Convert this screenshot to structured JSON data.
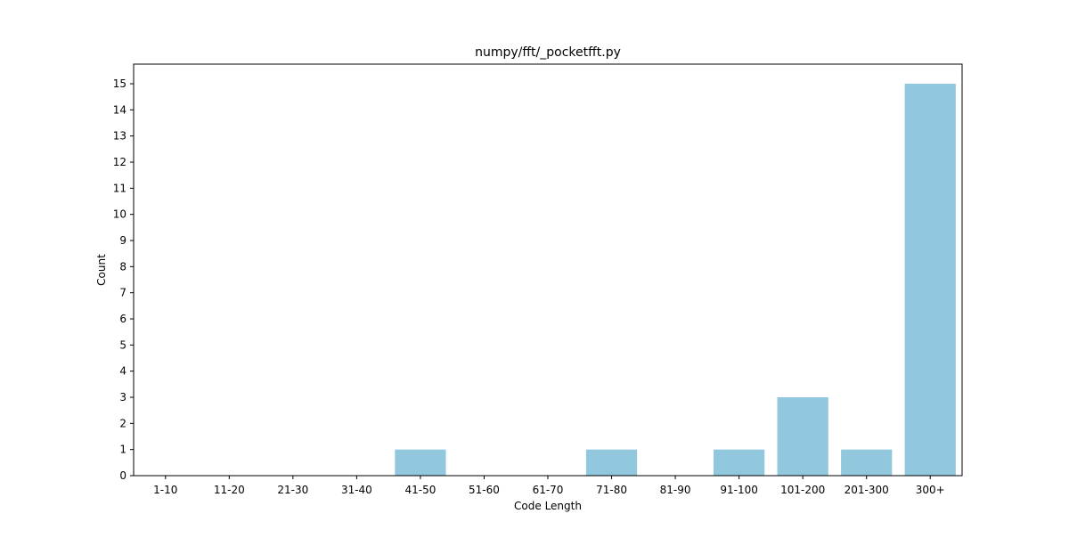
{
  "chart_data": {
    "type": "bar",
    "title": "numpy/fft/_pocketfft.py",
    "xlabel": "Code Length",
    "ylabel": "Count",
    "categories": [
      "1-10",
      "11-20",
      "21-30",
      "31-40",
      "41-50",
      "51-60",
      "61-70",
      "71-80",
      "81-90",
      "91-100",
      "101-200",
      "201-300",
      "300+"
    ],
    "values": [
      0,
      0,
      0,
      0,
      1,
      0,
      0,
      1,
      0,
      1,
      3,
      1,
      15
    ],
    "ylim": [
      0,
      15.75
    ],
    "yticks": [
      0,
      1,
      2,
      3,
      4,
      5,
      6,
      7,
      8,
      9,
      10,
      11,
      12,
      13,
      14,
      15
    ],
    "bar_color": "#92c8dd",
    "grid": false,
    "legend": "none"
  }
}
